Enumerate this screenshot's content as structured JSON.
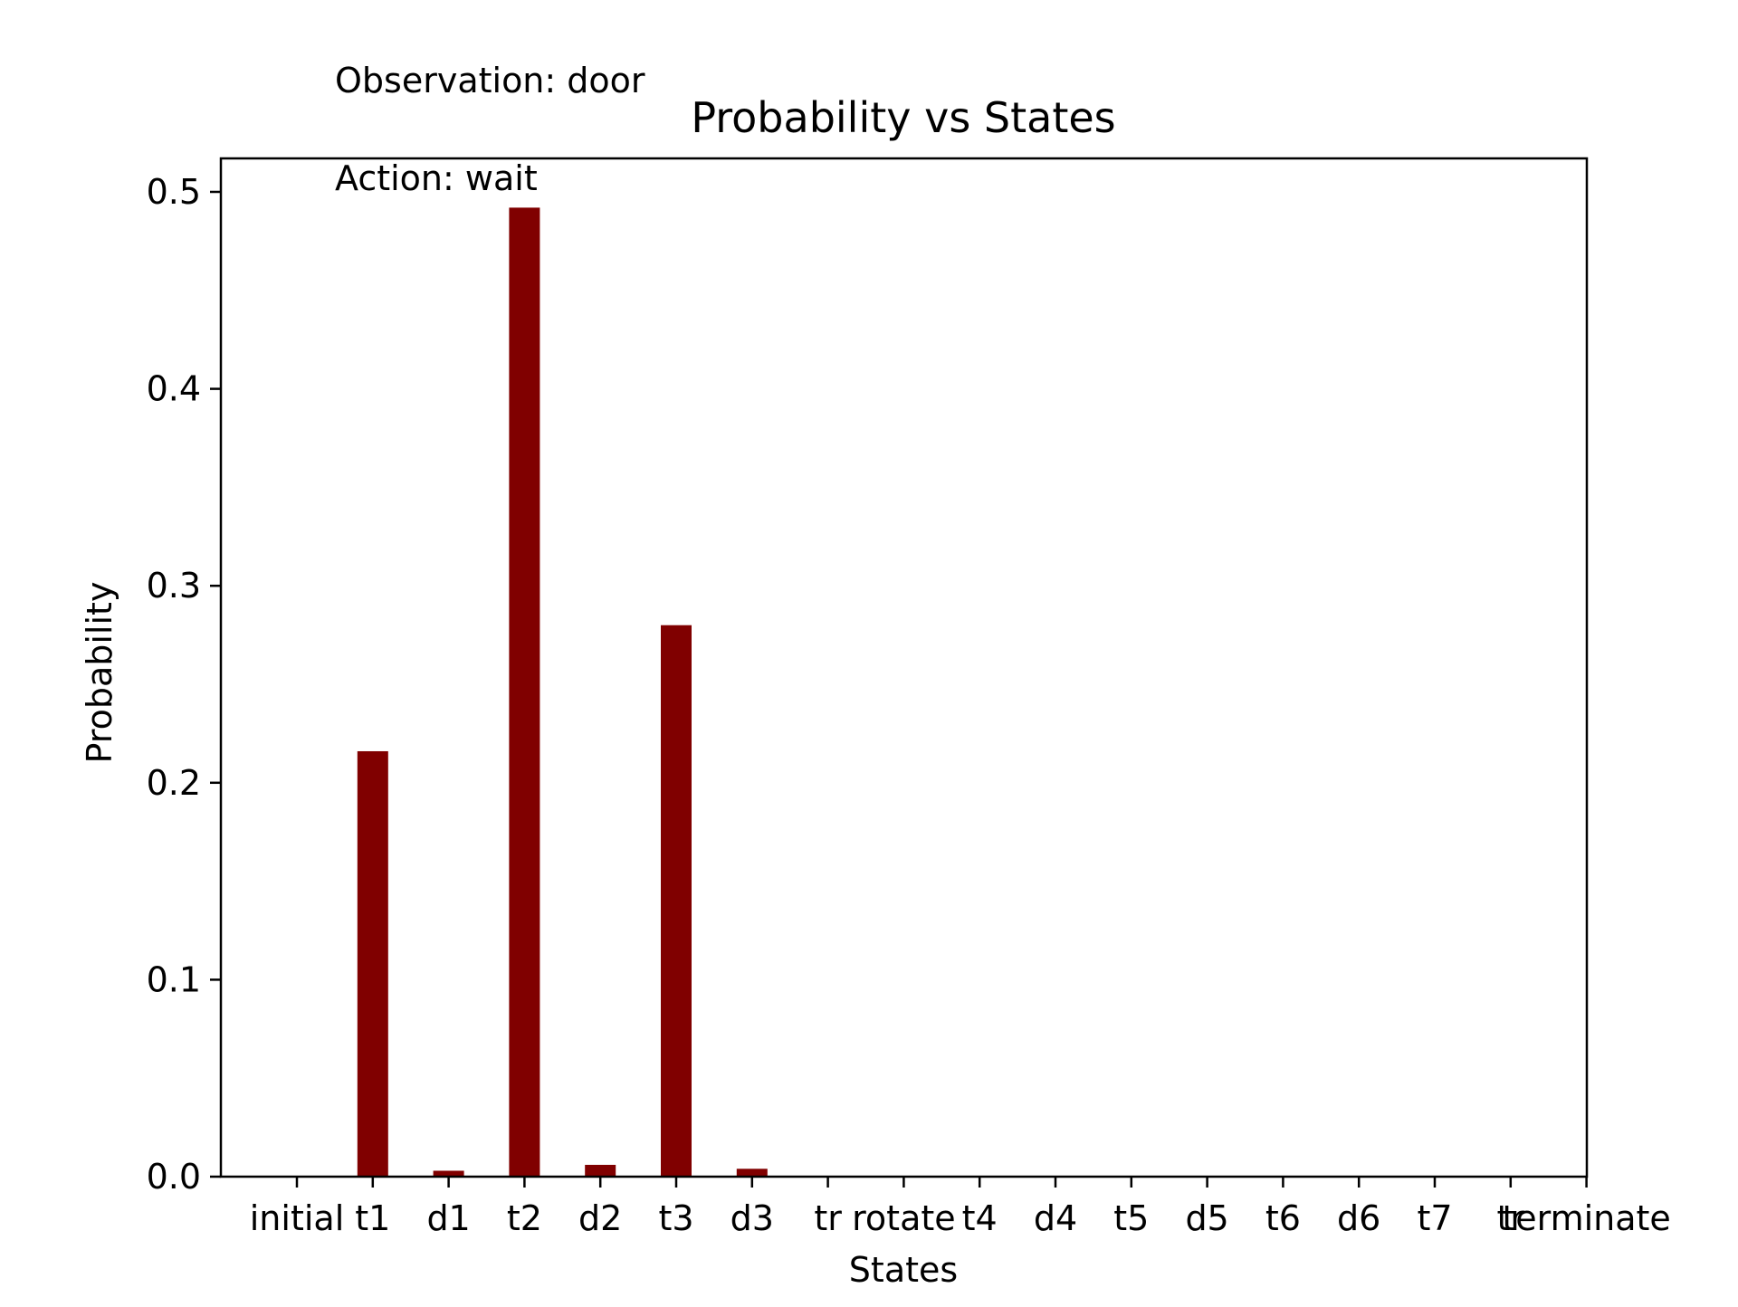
{
  "annotations": {
    "observation": "Observation: door",
    "action": "Action: wait"
  },
  "colors": {
    "bar": "#800000",
    "axis": "#000000",
    "background": "#ffffff"
  },
  "chart_data": {
    "type": "bar",
    "title": "Probability vs States",
    "xlabel": "States",
    "ylabel": "Probability",
    "categories": [
      "initial",
      "t1",
      "d1",
      "t2",
      "d2",
      "t3",
      "d3",
      "tr",
      "rotate",
      "t4",
      "d4",
      "t5",
      "d5",
      "t6",
      "d6",
      "t7",
      "tr",
      "terminate"
    ],
    "values": [
      0.0,
      0.216,
      0.003,
      0.492,
      0.006,
      0.28,
      0.004,
      0.0,
      0.0,
      0.0,
      0.0,
      0.0,
      0.0,
      0.0,
      0.0,
      0.0,
      0.0,
      0.0
    ],
    "yticks": [
      "0.0",
      "0.1",
      "0.2",
      "0.3",
      "0.4",
      "0.5"
    ],
    "ylim": [
      0,
      0.517
    ],
    "grid": false,
    "legend": "none"
  }
}
